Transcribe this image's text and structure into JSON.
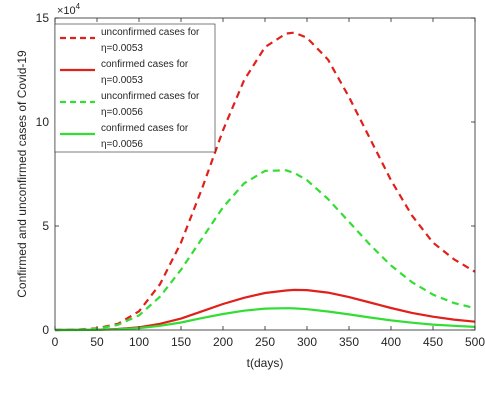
{
  "chart_data": {
    "type": "line",
    "title": "",
    "xlabel": "t(days)",
    "ylabel": "Confirmed and unconfirmed cases of Covid-19",
    "xlim": [
      0,
      500
    ],
    "ylim": [
      0,
      150000
    ],
    "x_ticks": [
      "0",
      "50",
      "100",
      "150",
      "200",
      "250",
      "300",
      "350",
      "400",
      "450",
      "500"
    ],
    "y_ticks": [
      "0",
      "5",
      "10",
      "15"
    ],
    "y_multiplier_base": "×10",
    "y_multiplier_exp": "4",
    "grid": false,
    "legend_position": "top-left",
    "x": [
      0,
      25,
      50,
      75,
      100,
      125,
      150,
      175,
      200,
      225,
      250,
      275,
      285,
      300,
      325,
      350,
      375,
      400,
      425,
      450,
      475,
      500
    ],
    "series": [
      {
        "legend_line1": "unconfirmed cases for",
        "legend_line2": "η=0.0053",
        "color": "#e0201b",
        "dash": "dashed",
        "values": [
          0,
          150,
          800,
          3000,
          9000,
          22000,
          42000,
          68000,
          96000,
          120000,
          136000,
          142500,
          143000,
          140500,
          130000,
          112000,
          92000,
          72000,
          55000,
          42000,
          34000,
          28000
        ]
      },
      {
        "legend_line1": "confirmed cases for",
        "legend_line2": "η=0.0053",
        "color": "#e0201b",
        "dash": "solid",
        "values": [
          0,
          30,
          150,
          500,
          1300,
          3000,
          5500,
          9000,
          12500,
          15500,
          17800,
          19000,
          19300,
          19200,
          18000,
          15800,
          13200,
          10600,
          8200,
          6400,
          5000,
          4000
        ]
      },
      {
        "legend_line1": "unconfirmed cases for",
        "legend_line2": "η=0.0056",
        "color": "#33dd33",
        "dash": "dashed",
        "values": [
          0,
          120,
          600,
          2500,
          7000,
          16000,
          29000,
          44000,
          59000,
          70500,
          76500,
          76800,
          75500,
          72000,
          63000,
          52000,
          41000,
          31000,
          23000,
          17000,
          13000,
          10500
        ]
      },
      {
        "legend_line1": "confirmed cases for",
        "legend_line2": "η=0.0056",
        "color": "#33dd33",
        "dash": "solid",
        "values": [
          0,
          20,
          100,
          350,
          900,
          2000,
          3600,
          5700,
          7700,
          9300,
          10300,
          10500,
          10400,
          10000,
          8900,
          7500,
          6000,
          4600,
          3500,
          2600,
          2000,
          1500
        ]
      }
    ]
  }
}
